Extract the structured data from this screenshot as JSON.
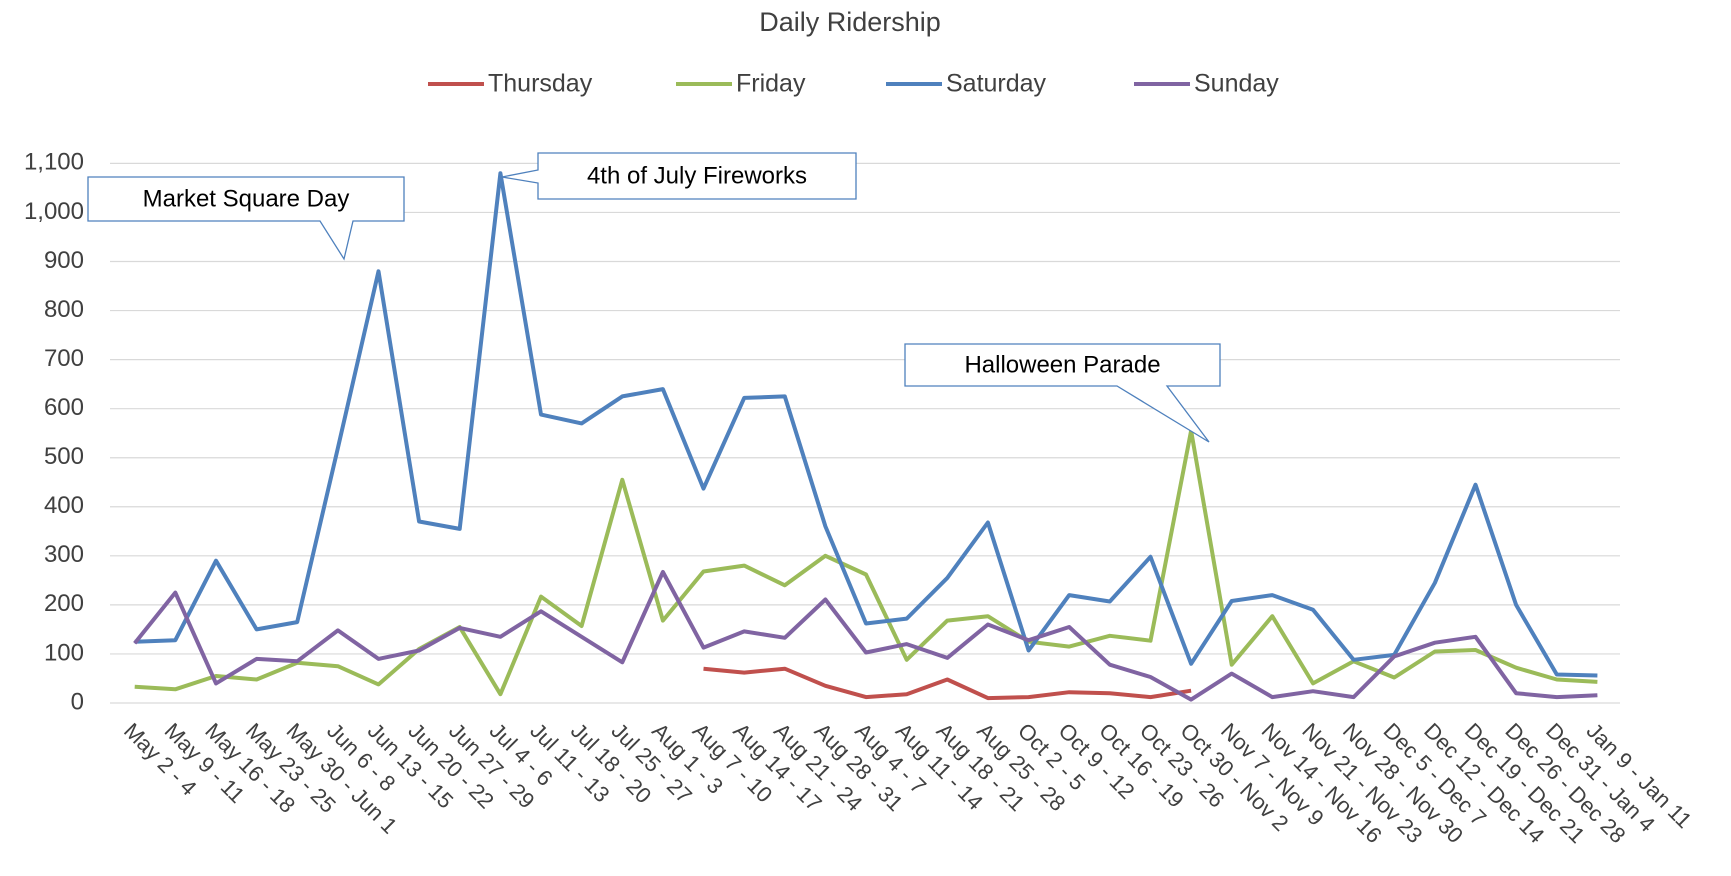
{
  "chart_data": {
    "type": "line",
    "title": "Daily Ridership",
    "categories": [
      "May 2 - 4",
      "May 9 - 11",
      "May 16 - 18",
      "May 23 - 25",
      "May 30 - Jun 1",
      "Jun 6 - 8",
      "Jun 13 - 15",
      "Jun 20 - 22",
      "Jun 27 - 29",
      "Jul 4 - 6",
      "Jul 11 - 13",
      "Jul 18 - 20",
      "Jul 25 - 27",
      "Aug 1 - 3",
      "Aug 7 - 10",
      "Aug 14 - 17",
      "Aug 21 - 24",
      "Aug 28 - 31",
      "Aug 4 - 7",
      "Aug 11 - 14",
      "Aug 18 - 21",
      "Aug 25 - 28",
      "Oct 2 - 5",
      "Oct 9 - 12",
      "Oct 16 - 19",
      "Oct 23 - 26",
      "Oct 30 - Nov 2",
      "Nov 7 - Nov 9",
      "Nov 14 - Nov 16",
      "Nov 21 - Nov 23",
      "Nov 28 - Nov 30",
      "Dec 5 - Dec 7",
      "Dec 12 - Dec 14",
      "Dec 19 - Dec 21",
      "Dec 26 - Dec 28",
      "Dec 31 - Jan 4",
      "Jan 9 - Jan 11"
    ],
    "series": [
      {
        "name": "Thursday",
        "color": "#c0504d",
        "values": [
          null,
          null,
          null,
          null,
          null,
          null,
          null,
          null,
          null,
          null,
          null,
          null,
          null,
          null,
          70,
          62,
          70,
          35,
          12,
          18,
          48,
          10,
          12,
          22,
          20,
          12,
          25,
          null,
          null,
          null,
          null,
          null,
          null,
          null,
          null,
          null,
          null
        ]
      },
      {
        "name": "Friday",
        "color": "#9bbb59",
        "values": [
          33,
          28,
          55,
          48,
          82,
          75,
          38,
          110,
          155,
          18,
          217,
          157,
          455,
          168,
          268,
          280,
          240,
          300,
          262,
          88,
          168,
          177,
          125,
          115,
          137,
          127,
          555,
          78,
          177,
          40,
          85,
          52,
          105,
          108,
          72,
          48,
          43
        ]
      },
      {
        "name": "Saturday",
        "color": "#4f81bd",
        "values": [
          125,
          128,
          290,
          150,
          165,
          520,
          880,
          370,
          355,
          1080,
          588,
          570,
          625,
          640,
          437,
          622,
          625,
          360,
          162,
          172,
          255,
          368,
          107,
          220,
          207,
          298,
          80,
          208,
          220,
          190,
          88,
          98,
          245,
          445,
          200,
          58,
          56
        ]
      },
      {
        "name": "Sunday",
        "color": "#8064a2",
        "values": [
          122,
          225,
          40,
          90,
          85,
          148,
          90,
          107,
          153,
          135,
          187,
          135,
          83,
          267,
          113,
          146,
          133,
          211,
          103,
          120,
          92,
          160,
          128,
          155,
          78,
          53,
          7,
          60,
          12,
          24,
          12,
          95,
          123,
          135,
          20,
          12,
          16
        ]
      }
    ],
    "ylim": [
      0,
      1100
    ],
    "yticks": [
      0,
      100,
      200,
      300,
      400,
      500,
      600,
      700,
      800,
      900,
      {
        "value": 1000,
        "label": "1,000"
      },
      {
        "value": 1100,
        "label": "1,100"
      }
    ],
    "grid": true,
    "legend": "top",
    "annotations": [
      {
        "text": "Market Square Day"
      },
      {
        "text": "4th of July Fireworks"
      },
      {
        "text": "Halloween Parade"
      }
    ]
  }
}
